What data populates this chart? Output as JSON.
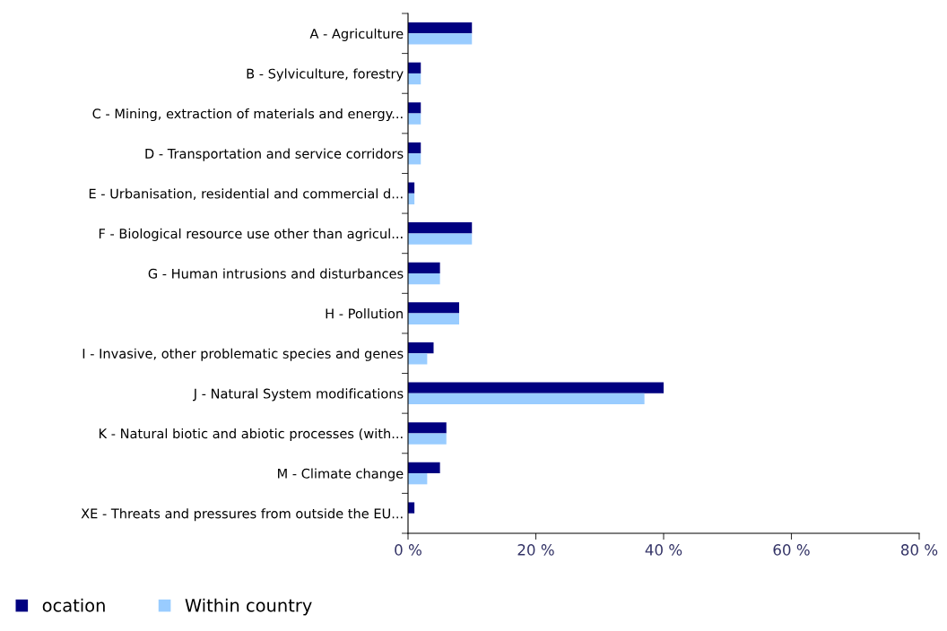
{
  "chart_data": {
    "type": "bar",
    "orientation": "horizontal",
    "categories": [
      "A - Agriculture",
      "B - Sylviculture, forestry",
      "C - Mining, extraction of materials and energy...",
      "D - Transportation and service corridors",
      "E - Urbanisation, residential and commercial d...",
      "F - Biological resource use other than agricul...",
      "G - Human intrusions and disturbances",
      "H - Pollution",
      "I - Invasive, other problematic species and genes",
      "J - Natural System modifications",
      "K - Natural biotic and abiotic processes (with...",
      "M - Climate change",
      "XE - Threats and pressures from outside the EU..."
    ],
    "series": [
      {
        "name": "ocation",
        "color": "#000080",
        "values": [
          10,
          2,
          2,
          2,
          1,
          10,
          5,
          8,
          4,
          40,
          6,
          5,
          1
        ]
      },
      {
        "name": "Within country",
        "color": "#99ccff",
        "values": [
          10,
          2,
          2,
          2,
          1,
          10,
          5,
          8,
          3,
          37,
          6,
          3,
          0
        ]
      }
    ],
    "xlim": [
      0,
      80
    ],
    "xticks": [
      {
        "value": 0,
        "label": "0 %"
      },
      {
        "value": 20,
        "label": "20 %"
      },
      {
        "value": 40,
        "label": "40 %"
      },
      {
        "value": 60,
        "label": "60 %"
      },
      {
        "value": 80,
        "label": "80 %"
      }
    ],
    "grid": false,
    "legend": "bottom left"
  }
}
